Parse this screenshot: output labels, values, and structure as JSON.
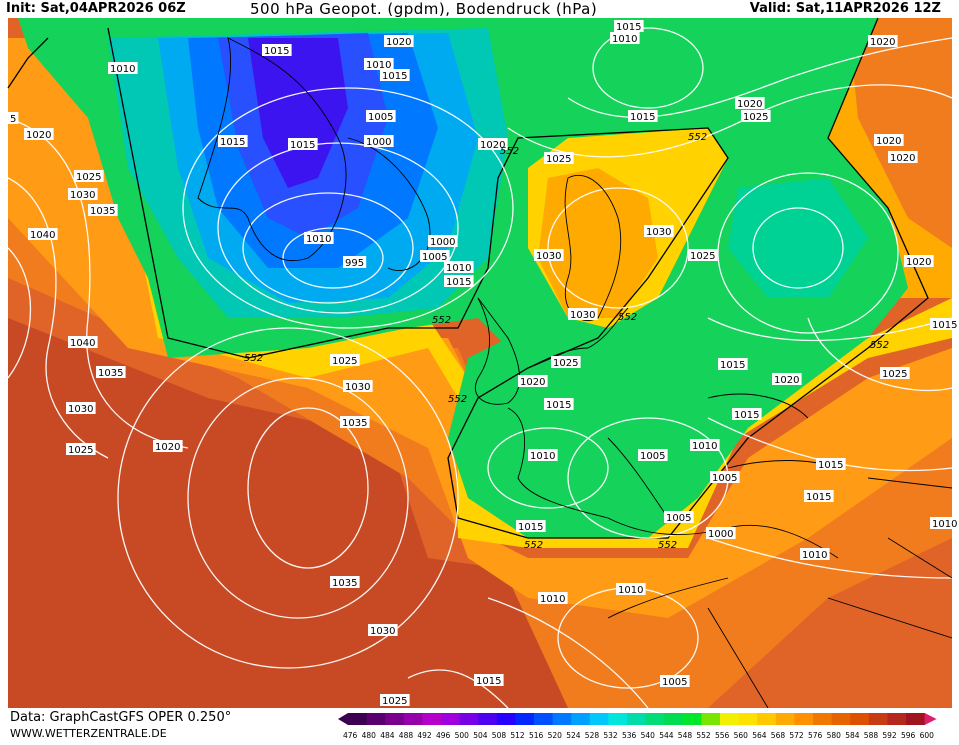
{
  "header": {
    "init": "Init: Sat,04APR2026 06Z",
    "title": "500 hPa Geopot. (gpdm), Bodendruck (hPa)",
    "valid": "Valid: Sat,11APR2026 12Z"
  },
  "footer": {
    "data_source": "Data: GraphCastGFS OPER 0.250°",
    "site": "WWW.WETTERZENTRALE.DE"
  },
  "legend": {
    "values": [
      "476",
      "480",
      "484",
      "488",
      "492",
      "496",
      "500",
      "504",
      "508",
      "512",
      "516",
      "520",
      "524",
      "528",
      "532",
      "536",
      "540",
      "544",
      "548",
      "552",
      "556",
      "560",
      "564",
      "568",
      "572",
      "576",
      "580",
      "584",
      "588",
      "592",
      "596",
      "600"
    ],
    "colors": [
      "#3c0050",
      "#5a006e",
      "#78008c",
      "#9600aa",
      "#b400c8",
      "#a000dc",
      "#7800e6",
      "#5000f0",
      "#2800ff",
      "#0028ff",
      "#0050ff",
      "#0078ff",
      "#00a0ff",
      "#00c8ff",
      "#00e6dc",
      "#00dcaa",
      "#00dc78",
      "#00dc50",
      "#00e628",
      "#78e600",
      "#f0f000",
      "#ffe100",
      "#ffc800",
      "#ffaa00",
      "#ff9100",
      "#f07800",
      "#e66400",
      "#dc5000",
      "#c83c14",
      "#b4281e",
      "#a0141e",
      "#dc1e6e"
    ]
  },
  "map": {
    "pressure_labels": [
      {
        "t": "1015"
      },
      {
        "t": "1010"
      },
      {
        "t": "1020"
      },
      {
        "t": "1015"
      },
      {
        "t": "1010"
      },
      {
        "t": "1010"
      },
      {
        "t": "1015"
      },
      {
        "t": "1020"
      },
      {
        "t": "1020"
      },
      {
        "t": "1005"
      },
      {
        "t": "1000"
      },
      {
        "t": "1015"
      },
      {
        "t": "1015"
      },
      {
        "t": "1020"
      },
      {
        "t": "1025"
      },
      {
        "t": "1015"
      },
      {
        "t": "1020"
      },
      {
        "t": "1025"
      },
      {
        "t": "1020"
      },
      {
        "t": "1025"
      },
      {
        "t": "1030"
      },
      {
        "t": "1035"
      },
      {
        "t": "1040"
      },
      {
        "t": "1010"
      },
      {
        "t": "995"
      },
      {
        "t": "1000"
      },
      {
        "t": "1005"
      },
      {
        "t": "1010"
      },
      {
        "t": "1015"
      },
      {
        "t": "1030"
      },
      {
        "t": "1030"
      },
      {
        "t": "1030"
      },
      {
        "t": "1025"
      },
      {
        "t": "1020"
      },
      {
        "t": "1040"
      },
      {
        "t": "1035"
      },
      {
        "t": "1030"
      },
      {
        "t": "1025"
      },
      {
        "t": "1020"
      },
      {
        "t": "1025"
      },
      {
        "t": "1030"
      },
      {
        "t": "1035"
      },
      {
        "t": "1020"
      },
      {
        "t": "1015"
      },
      {
        "t": "1010"
      },
      {
        "t": "1005"
      },
      {
        "t": "1010"
      },
      {
        "t": "1015"
      },
      {
        "t": "1005"
      },
      {
        "t": "1000"
      },
      {
        "t": "1010"
      },
      {
        "t": "1015"
      },
      {
        "t": "1015"
      },
      {
        "t": "1025"
      },
      {
        "t": "1015"
      },
      {
        "t": "1020"
      },
      {
        "t": "1015"
      },
      {
        "t": "1020"
      },
      {
        "t": "1025"
      },
      {
        "t": "1035"
      },
      {
        "t": "1030"
      },
      {
        "t": "1025"
      },
      {
        "t": "1015"
      },
      {
        "t": "1010"
      },
      {
        "t": "1010"
      },
      {
        "t": "1005"
      },
      {
        "t": "1005"
      },
      {
        "t": "1015"
      },
      {
        "t": "1010"
      },
      {
        "t": "5"
      }
    ],
    "isoline_labels": [
      {
        "t": "552"
      },
      {
        "t": "552"
      },
      {
        "t": "552"
      },
      {
        "t": "552"
      },
      {
        "t": "552"
      },
      {
        "t": "552"
      },
      {
        "t": "552"
      },
      {
        "t": "552"
      },
      {
        "t": "552"
      }
    ]
  }
}
